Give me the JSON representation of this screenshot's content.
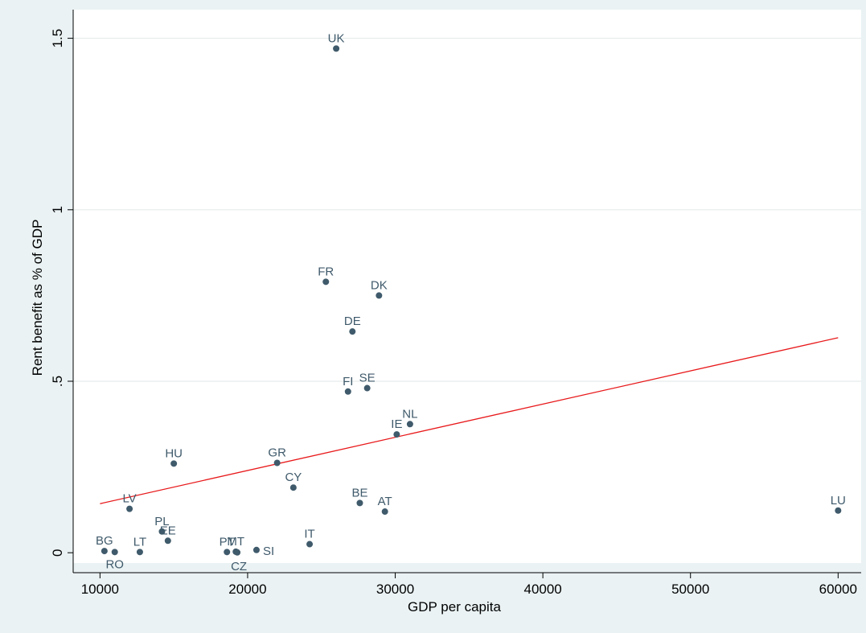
{
  "chart_data": {
    "type": "scatter",
    "title": "",
    "xlabel": "GDP per capita",
    "ylabel": "Rent benefit as % of GDP",
    "xlim": [
      9000,
      60800
    ],
    "ylim": [
      -0.03,
      1.56
    ],
    "xticks": [
      10000,
      20000,
      30000,
      40000,
      50000,
      60000
    ],
    "yticks": [
      0,
      0.5,
      1,
      1.5
    ],
    "ytick_labels": [
      "0",
      ".5",
      "1",
      "1.5"
    ],
    "grid": "horizontal",
    "legend": "none",
    "colors": {
      "background": "#eaf2f3",
      "plot_area": "#ffffff",
      "marker": "#3f5a6b",
      "label": "#3f5a6b",
      "fit_line": "#e8191b",
      "grid": "#e6ecec"
    },
    "points": [
      {
        "label": "UK",
        "x": 26000,
        "y": 1.47,
        "pos": "n"
      },
      {
        "label": "FR",
        "x": 25300,
        "y": 0.79,
        "pos": "n"
      },
      {
        "label": "DK",
        "x": 28900,
        "y": 0.75,
        "pos": "n"
      },
      {
        "label": "DE",
        "x": 27100,
        "y": 0.645,
        "pos": "n"
      },
      {
        "label": "FI",
        "x": 26800,
        "y": 0.47,
        "pos": "n"
      },
      {
        "label": "SE",
        "x": 28100,
        "y": 0.48,
        "pos": "n"
      },
      {
        "label": "NL",
        "x": 31000,
        "y": 0.375,
        "pos": "n"
      },
      {
        "label": "IE",
        "x": 30100,
        "y": 0.345,
        "pos": "n"
      },
      {
        "label": "HU",
        "x": 15000,
        "y": 0.26,
        "pos": "n"
      },
      {
        "label": "GR",
        "x": 22000,
        "y": 0.262,
        "pos": "n"
      },
      {
        "label": "CY",
        "x": 23100,
        "y": 0.19,
        "pos": "n"
      },
      {
        "label": "BE",
        "x": 27600,
        "y": 0.145,
        "pos": "n"
      },
      {
        "label": "AT",
        "x": 29300,
        "y": 0.12,
        "pos": "n"
      },
      {
        "label": "LU",
        "x": 60000,
        "y": 0.123,
        "pos": "n"
      },
      {
        "label": "LV",
        "x": 12000,
        "y": 0.128,
        "pos": "n"
      },
      {
        "label": "PL",
        "x": 14200,
        "y": 0.062,
        "pos": "n"
      },
      {
        "label": "EE",
        "x": 14600,
        "y": 0.035,
        "pos": "n"
      },
      {
        "label": "BG",
        "x": 10300,
        "y": 0.005,
        "pos": "n"
      },
      {
        "label": "RO",
        "x": 11000,
        "y": 0.002,
        "pos": "s"
      },
      {
        "label": "LT",
        "x": 12700,
        "y": 0.002,
        "pos": "n"
      },
      {
        "label": "PT",
        "x": 18600,
        "y": 0.002,
        "pos": "n"
      },
      {
        "label": "MT",
        "x": 19200,
        "y": 0.003,
        "pos": "n"
      },
      {
        "label": "SI",
        "x": 20600,
        "y": 0.008,
        "pos": "e"
      },
      {
        "label": "CZ",
        "x": 19300,
        "y": 0.001,
        "pos": "se"
      },
      {
        "label": "IT",
        "x": 24200,
        "y": 0.025,
        "pos": "n"
      }
    ],
    "fit_line": {
      "x": [
        10000,
        60000
      ],
      "y": [
        0.143,
        0.627
      ]
    }
  }
}
